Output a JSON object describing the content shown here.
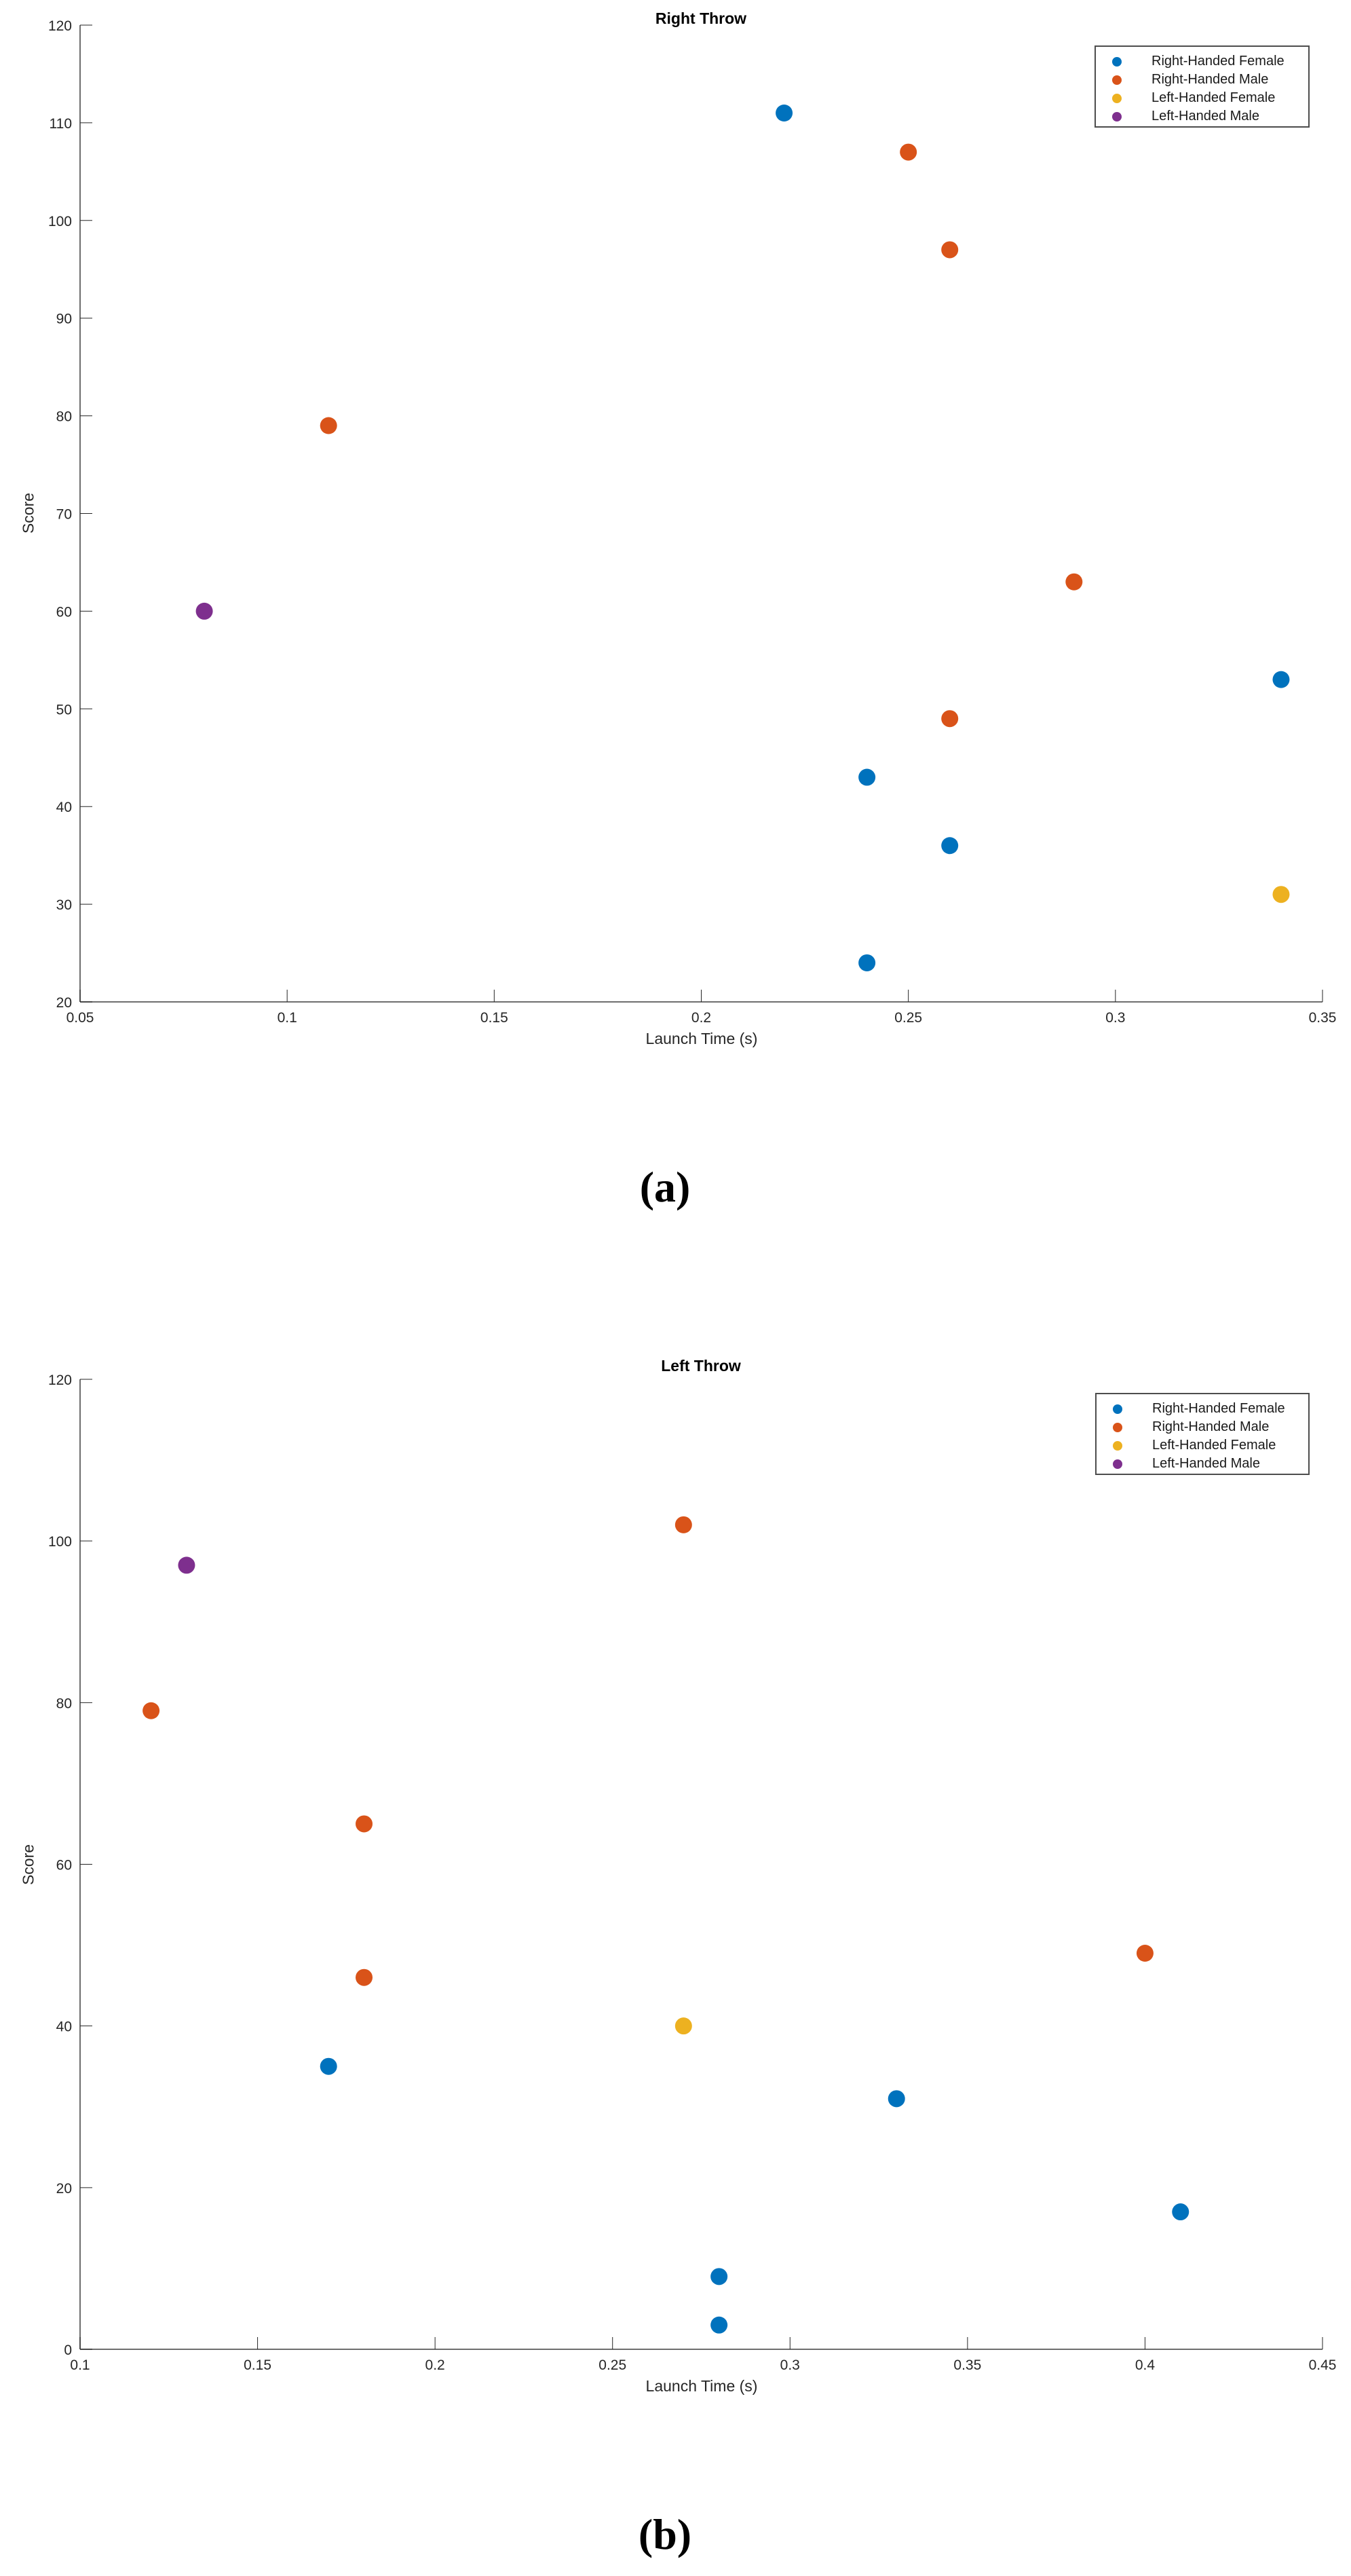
{
  "legend": {
    "items": [
      {
        "label": "Right-Handed Female",
        "color": "#0072BD"
      },
      {
        "label": "Right-Handed Male",
        "color": "#D95319"
      },
      {
        "label": "Left-Handed Female",
        "color": "#EDB120"
      },
      {
        "label": "Left-Handed Male",
        "color": "#7E2F8E"
      }
    ]
  },
  "panels": [
    {
      "caption": "(a)"
    },
    {
      "caption": "(b)"
    }
  ],
  "chart_data": [
    {
      "type": "scatter",
      "title": "Right Throw",
      "xlabel": "Launch Time (s)",
      "ylabel": "Score",
      "xlim": [
        0.05,
        0.35
      ],
      "ylim": [
        20,
        120
      ],
      "xticks": [
        "0.05",
        "0.1",
        "0.15",
        "0.2",
        "0.25",
        "0.3",
        "0.35"
      ],
      "yticks": [
        "20",
        "30",
        "40",
        "50",
        "60",
        "70",
        "80",
        "90",
        "100",
        "110",
        "120"
      ],
      "grid": false,
      "legend_position": "upper right",
      "series": [
        {
          "name": "Right-Handed Female",
          "color": "#0072BD",
          "points": [
            [
              0.22,
              111
            ],
            [
              0.24,
              43
            ],
            [
              0.26,
              36
            ],
            [
              0.24,
              24
            ],
            [
              0.34,
              53
            ]
          ]
        },
        {
          "name": "Right-Handed Male",
          "color": "#D95319",
          "points": [
            [
              0.25,
              107
            ],
            [
              0.26,
              97
            ],
            [
              0.11,
              79
            ],
            [
              0.29,
              63
            ],
            [
              0.26,
              49
            ]
          ]
        },
        {
          "name": "Left-Handed Female",
          "color": "#EDB120",
          "points": [
            [
              0.34,
              31
            ]
          ]
        },
        {
          "name": "Left-Handed Male",
          "color": "#7E2F8E",
          "points": [
            [
              0.08,
              60
            ]
          ]
        }
      ]
    },
    {
      "type": "scatter",
      "title": "Left Throw",
      "xlabel": "Launch Time (s)",
      "ylabel": "Score",
      "xlim": [
        0.1,
        0.45
      ],
      "ylim": [
        0,
        120
      ],
      "xticks": [
        "0.1",
        "0.15",
        "0.2",
        "0.25",
        "0.3",
        "0.35",
        "0.4",
        "0.45"
      ],
      "yticks": [
        "0",
        "20",
        "40",
        "60",
        "80",
        "100",
        "120"
      ],
      "grid": false,
      "legend_position": "upper right",
      "series": [
        {
          "name": "Right-Handed Female",
          "color": "#0072BD",
          "points": [
            [
              0.17,
              35
            ],
            [
              0.33,
              31
            ],
            [
              0.41,
              17
            ],
            [
              0.28,
              9
            ],
            [
              0.28,
              3
            ]
          ]
        },
        {
          "name": "Right-Handed Male",
          "color": "#D95319",
          "points": [
            [
              0.27,
              102
            ],
            [
              0.12,
              79
            ],
            [
              0.18,
              65
            ],
            [
              0.18,
              46
            ],
            [
              0.4,
              49
            ]
          ]
        },
        {
          "name": "Left-Handed Female",
          "color": "#EDB120",
          "points": [
            [
              0.27,
              40
            ]
          ]
        },
        {
          "name": "Left-Handed Male",
          "color": "#7E2F8E",
          "points": [
            [
              0.13,
              97
            ]
          ]
        }
      ]
    }
  ]
}
